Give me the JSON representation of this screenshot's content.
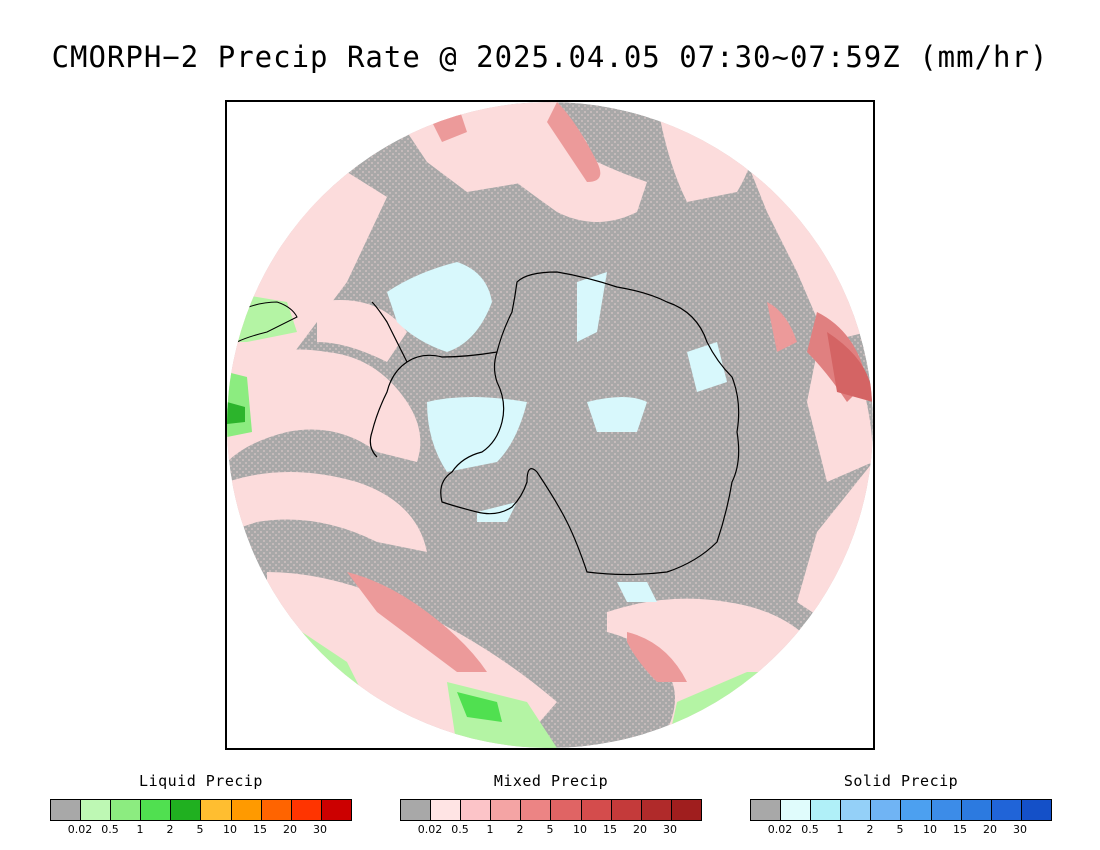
{
  "title": "CMORPH−2 Precip Rate @ 2025.04.05 07:30~07:59Z (mm/hr)",
  "colors": {
    "background_gray": "#a8a8a8",
    "mixed_light": "#fcdcdc",
    "mixed_medium": "#f0a6a6",
    "mixed_heavy": "#dc6a6a",
    "snow_light": "#d8f8fc",
    "rain_light": "#b4f4a4",
    "rain_medium": "#3cc83c",
    "coastline": "#000000"
  },
  "legends": [
    {
      "title": "Liquid Precip",
      "colors": [
        "#a8a8a8",
        "#bef8b4",
        "#8cec80",
        "#50e050",
        "#20b020",
        "#ffbe30",
        "#ff9a00",
        "#ff6400",
        "#ff3400",
        "#cc0000"
      ],
      "ticks": [
        "0.02",
        "0.5",
        "1",
        "2",
        "5",
        "10",
        "15",
        "20",
        "30"
      ]
    },
    {
      "title": "Mixed Precip",
      "colors": [
        "#a8a8a8",
        "#ffe4e4",
        "#fcc4c8",
        "#f4a4a4",
        "#ec8484",
        "#e06464",
        "#d44c4c",
        "#c43a3a",
        "#b02a2a",
        "#a01e1e"
      ],
      "ticks": [
        "0.02",
        "0.5",
        "1",
        "2",
        "5",
        "10",
        "15",
        "20",
        "30"
      ]
    },
    {
      "title": "Solid Precip",
      "colors": [
        "#a8a8a8",
        "#e0fcfc",
        "#b0f0f8",
        "#94d0f8",
        "#70b4f4",
        "#4ca0f0",
        "#3c8ce8",
        "#2c7ae0",
        "#2064d8",
        "#1450c8"
      ],
      "ticks": [
        "0.02",
        "0.5",
        "1",
        "2",
        "5",
        "10",
        "15",
        "20",
        "30"
      ]
    }
  ]
}
